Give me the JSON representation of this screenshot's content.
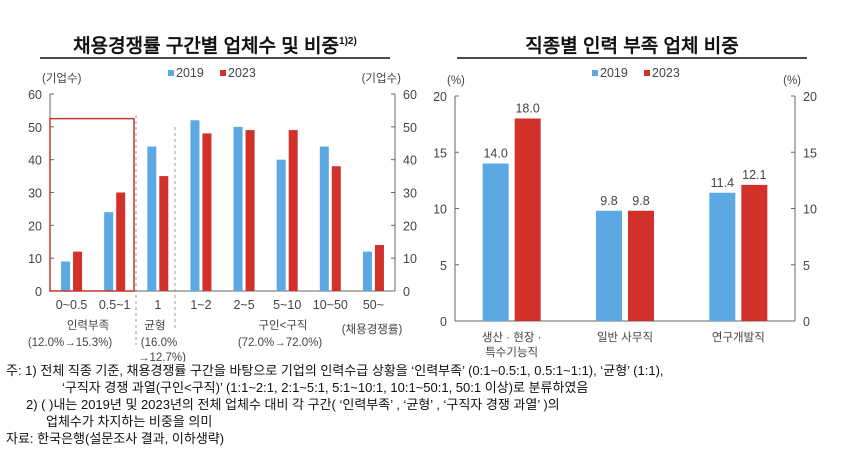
{
  "chart_data": [
    {
      "type": "bar",
      "title": "채용경쟁률 구간별 업체수 및 비중",
      "title_sup": "1)2)",
      "ylabel_left": "(기업수)",
      "ylabel_right": "(기업수)",
      "xlabel": "(채용경쟁률)",
      "ylim": [
        0,
        60
      ],
      "yticks": [
        "0",
        "10",
        "20",
        "30",
        "40",
        "50",
        "60"
      ],
      "categories": [
        "0~0.5",
        "0.5~1",
        "1",
        "1~2",
        "2~5",
        "5~10",
        "10~50",
        "50~"
      ],
      "series": [
        {
          "name": "2019",
          "color": "#5BA8E3",
          "values": [
            9,
            24,
            44,
            52,
            50,
            40,
            44,
            12
          ]
        },
        {
          "name": "2023",
          "color": "#D1312A",
          "values": [
            12,
            30,
            35,
            48,
            49,
            49,
            38,
            14
          ]
        }
      ],
      "groups": [
        {
          "name": "인력부족",
          "share": "(12.0%→15.3%)"
        },
        {
          "name": "균형",
          "share": "(16.0%",
          "share2": "→12.7%)"
        },
        {
          "name": "구인<구직",
          "share": "(72.0%→72.0%)"
        }
      ]
    },
    {
      "type": "bar",
      "title": "직종별 인력 부족 업체 비중",
      "ylabel_left": "(%)",
      "ylabel_right": "(%)",
      "ylim": [
        0,
        20
      ],
      "yticks": [
        "0",
        "5",
        "10",
        "15",
        "20"
      ],
      "categories": [
        "생산 · 현장 ·|특수기능직",
        "일반 사무직",
        "연구개발직"
      ],
      "series": [
        {
          "name": "2019",
          "color": "#5BA8E3",
          "values": [
            14.0,
            9.8,
            11.4
          ]
        },
        {
          "name": "2023",
          "color": "#D1312A",
          "values": [
            18.0,
            9.8,
            12.1
          ]
        }
      ]
    }
  ],
  "notes": [
    "주: 1) 전체 직종 기준, 채용경쟁률 구간을 바탕으로 기업의 인력수급 상황을 ‘인력부족’ (0:1~0.5:1, 0.5:1~1:1), ‘균형’ (1:1),",
    "‘구직자 경쟁 과열(구인<구직)’ (1:1~2:1, 2:1~5:1, 5:1~10:1, 10:1~50:1, 50:1 이상)로 분류하였음",
    "2) ( )내는 2019년 및 2023년의 전체 업체수 대비 각 구간( ‘인력부족’ , ‘균형’ , ‘구직자 경쟁 과열’ )의",
    "업체수가 차지하는 비중을 의미",
    "자료: 한국은행(설문조사 결과, 이하생략)"
  ]
}
